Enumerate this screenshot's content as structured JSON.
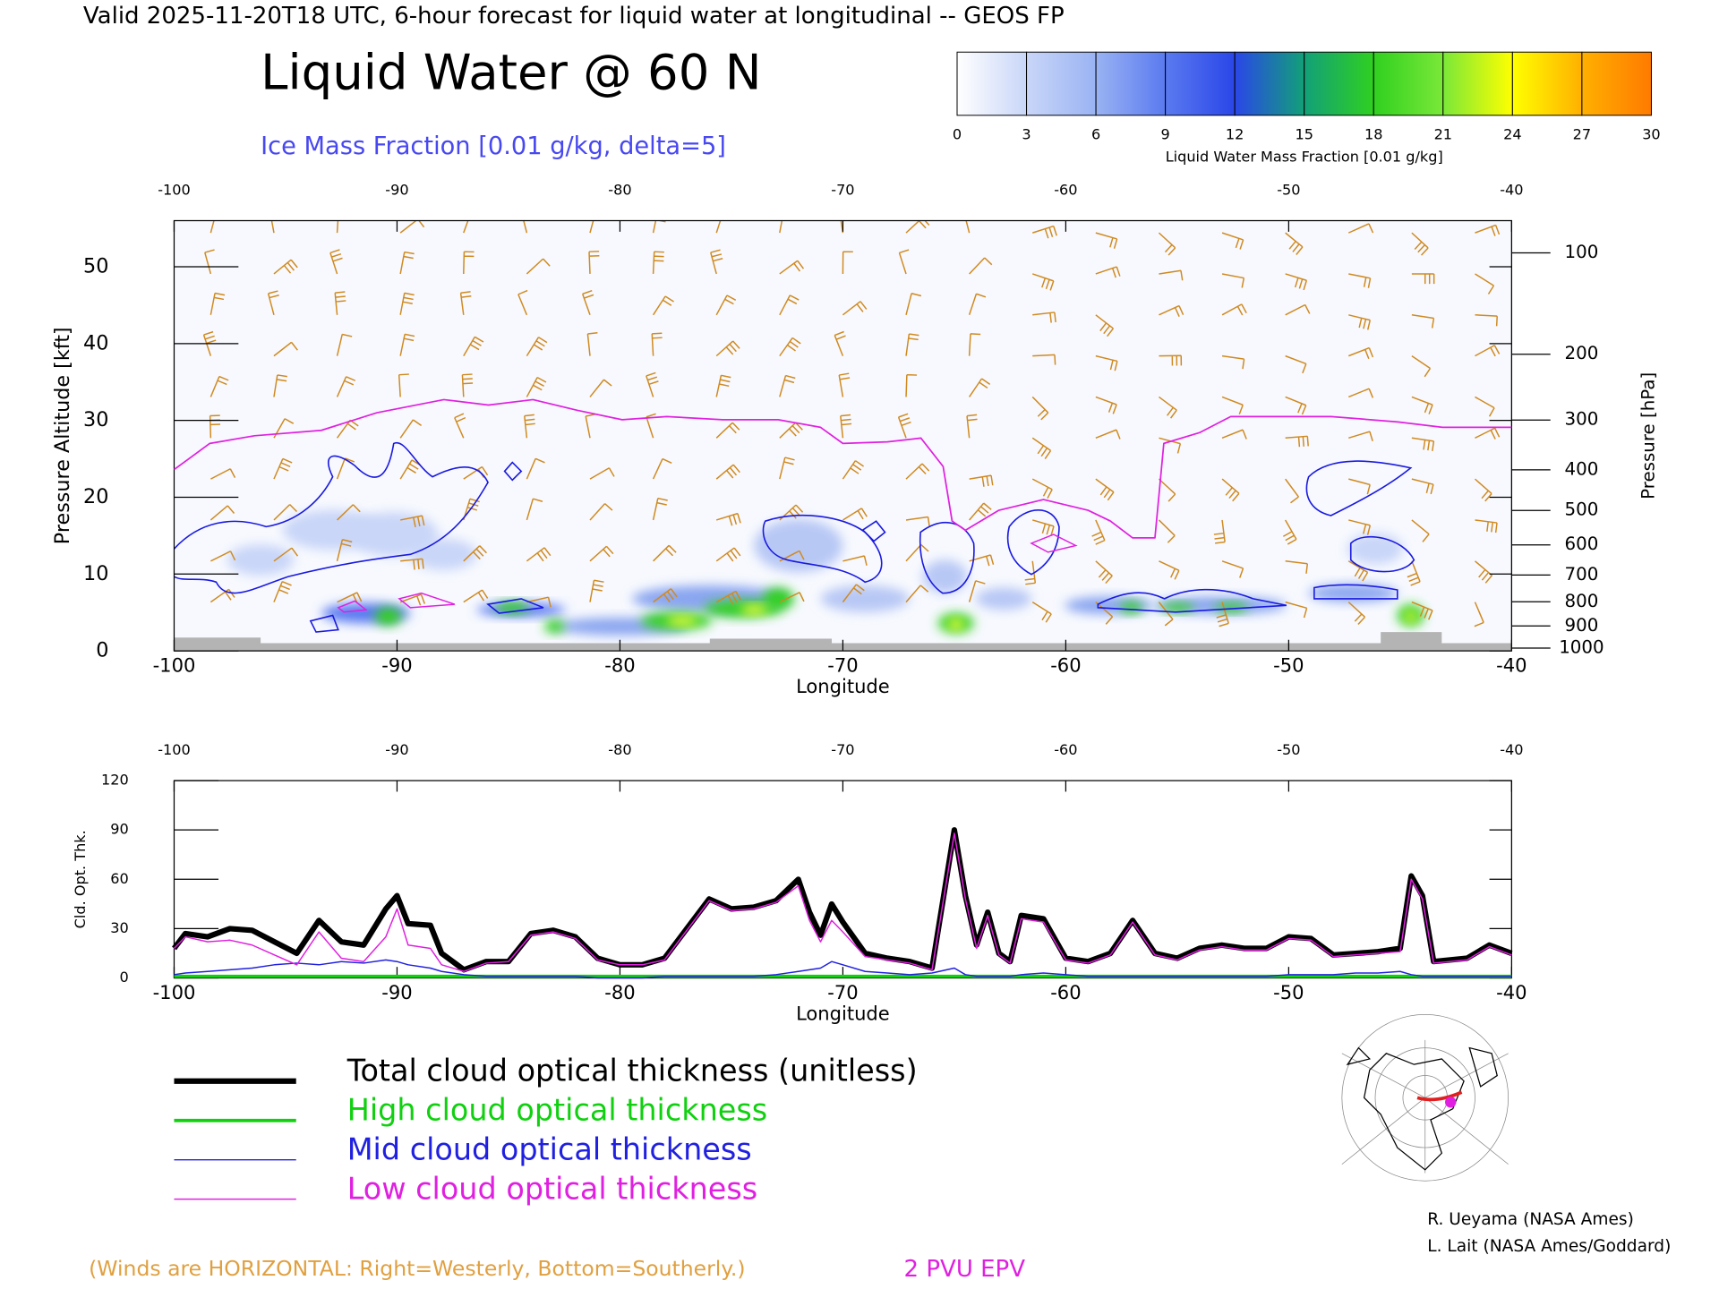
{
  "title": "Valid 2025-11-20T18 UTC, 6-hour forecast for liquid water at longitudinal -- GEOS FP",
  "colorbar": {
    "title": "Liquid Water Mass Fraction [0.01 g/kg]",
    "ticks": [
      0,
      3,
      6,
      9,
      12,
      15,
      18,
      21,
      24,
      27,
      30
    ],
    "colors": [
      "#ffffff",
      "#c9d6f8",
      "#9ab3f3",
      "#5a7af0",
      "#2a46e8",
      "#12a078",
      "#30d020",
      "#7ae838",
      "#ffff00",
      "#ffb000",
      "#ff7a00"
    ]
  },
  "chart_data": [
    {
      "type": "line",
      "title": "Liquid Water @ 60 N",
      "subtitle": "Ice Mass Fraction [0.01 g/kg, delta=5]",
      "x_label": "Longitude",
      "y_label": "Pressure Altitude [kft]",
      "y2_label": "Pressure [hPa]",
      "annotation": "(Winds are HORIZONTAL: Right=Westerly, Bottom=Southerly.)",
      "xlim": [
        -100,
        -40
      ],
      "xticks": [
        -100,
        -90,
        -80,
        -70,
        -60,
        -50,
        -40
      ],
      "ylim": [
        0,
        56
      ],
      "yticks": [
        0,
        10,
        20,
        30,
        40,
        50
      ],
      "y2_scale": "pressure-altitude",
      "y2ticks": [
        100,
        200,
        300,
        400,
        500,
        600,
        700,
        800,
        900,
        1000
      ],
      "x": [
        -100,
        -98.4,
        -96.4,
        -93.4,
        -90.9,
        -87.9,
        -85.9,
        -83.9,
        -81.9,
        -79.9,
        -77.9,
        -75.4,
        -72.9,
        -71,
        -70,
        -68,
        -66.5,
        -65.5,
        -65.1,
        -64.5,
        -63,
        -61,
        -59,
        -58,
        -57,
        -56,
        -55.6,
        -54,
        -52.6,
        -48.1,
        -45.1,
        -43.1,
        -40
      ],
      "series": [
        {
          "name": "2 PVU EPV",
          "color": "#e020e0",
          "values": [
            23.6,
            27,
            28,
            28.7,
            31,
            32.7,
            32,
            32.7,
            31.3,
            30.1,
            30.5,
            30.1,
            30.1,
            29.1,
            27,
            27.2,
            27.7,
            24,
            16.9,
            15.7,
            18.3,
            19.7,
            18.3,
            16.9,
            14.7,
            14.7,
            27,
            28.4,
            30.5,
            30.5,
            29.8,
            29.1,
            29.1
          ]
        }
      ]
    },
    {
      "type": "line",
      "x_label": "Longitude",
      "y_label": "Cld. Opt. Thk.",
      "xlim": [
        -100,
        -40
      ],
      "xticks": [
        -100,
        -90,
        -80,
        -70,
        -60,
        -50,
        -40
      ],
      "ylim": [
        0,
        120
      ],
      "yticks": [
        0,
        30,
        60,
        90,
        120
      ],
      "x": [
        -100,
        -99.5,
        -98.5,
        -97.5,
        -96.5,
        -95.5,
        -94.5,
        -93.5,
        -92.5,
        -91.5,
        -90.5,
        -90,
        -89.5,
        -88.5,
        -88,
        -87,
        -86,
        -85,
        -84,
        -83,
        -82,
        -81,
        -80,
        -79,
        -78,
        -77,
        -76,
        -75,
        -74,
        -73,
        -72,
        -71.5,
        -71,
        -70.5,
        -70,
        -69,
        -68,
        -67,
        -66,
        -65,
        -64.5,
        -64,
        -63.5,
        -63,
        -62.5,
        -62,
        -61,
        -60,
        -59,
        -58,
        -57,
        -56,
        -55,
        -54,
        -53,
        -52,
        -51,
        -50,
        -49,
        -48,
        -47,
        -46,
        -45,
        -44.5,
        -44,
        -43.5,
        -42,
        -41,
        -40
      ],
      "series": [
        {
          "name": "Total cloud optical thickness (unitless)",
          "color": "#000000",
          "values": [
            18,
            27,
            25,
            30,
            29,
            22,
            15,
            35,
            22,
            20,
            42,
            50,
            33,
            32,
            15,
            5,
            10,
            10,
            27,
            29,
            25,
            12,
            8,
            8,
            12,
            30,
            48,
            42,
            43,
            47,
            60,
            40,
            26,
            45,
            34,
            15,
            12,
            10,
            6,
            90,
            50,
            20,
            40,
            15,
            10,
            38,
            36,
            12,
            10,
            15,
            35,
            15,
            12,
            18,
            20,
            18,
            18,
            25,
            24,
            14,
            15,
            16,
            18,
            62,
            50,
            10,
            12,
            20,
            15
          ]
        },
        {
          "name": "High cloud optical thickness",
          "color": "#10d010",
          "values": [
            1,
            1,
            1,
            1,
            1,
            1,
            1,
            1,
            1,
            1,
            1,
            1,
            1,
            1,
            1,
            1,
            1,
            1,
            1,
            1,
            1,
            1,
            1,
            1,
            1,
            1,
            1,
            1,
            1,
            1,
            1,
            1,
            1,
            1,
            1,
            1,
            1,
            1,
            1,
            1,
            1,
            1,
            1,
            1,
            1,
            1,
            1,
            1,
            1,
            1,
            1,
            1,
            1,
            1,
            1,
            1,
            1,
            1,
            1,
            1,
            1,
            1,
            1,
            1,
            1,
            1,
            1,
            1,
            1
          ]
        },
        {
          "name": "Mid cloud optical thickness",
          "color": "#2020e0",
          "values": [
            2,
            3,
            4,
            5,
            6,
            8,
            9,
            8,
            10,
            9,
            11,
            10,
            8,
            6,
            4,
            2,
            1,
            1,
            1,
            1,
            1,
            0,
            0,
            0,
            1,
            1,
            1,
            1,
            1,
            2,
            4,
            5,
            6,
            10,
            8,
            4,
            3,
            2,
            3,
            6,
            2,
            1,
            1,
            1,
            1,
            2,
            3,
            2,
            1,
            1,
            1,
            1,
            1,
            1,
            1,
            1,
            1,
            2,
            2,
            2,
            3,
            3,
            4,
            2,
            1,
            1,
            1,
            1,
            1
          ]
        },
        {
          "name": "Low cloud optical thickness",
          "color": "#e020e0",
          "values": [
            18,
            25,
            22,
            23,
            20,
            14,
            8,
            28,
            12,
            10,
            25,
            42,
            20,
            18,
            8,
            4,
            9,
            10,
            26,
            28,
            24,
            11,
            8,
            8,
            11,
            29,
            47,
            41,
            42,
            46,
            56,
            35,
            22,
            35,
            28,
            13,
            11,
            9,
            5,
            88,
            48,
            18,
            38,
            14,
            9,
            36,
            34,
            11,
            9,
            14,
            34,
            14,
            11,
            17,
            19,
            17,
            17,
            24,
            23,
            13,
            14,
            15,
            16,
            60,
            48,
            9,
            11,
            19,
            14
          ]
        }
      ]
    }
  ],
  "credits": [
    "R. Ueyama (NASA Ames)",
    "L. Lait (NASA Ames/Goddard)"
  ]
}
